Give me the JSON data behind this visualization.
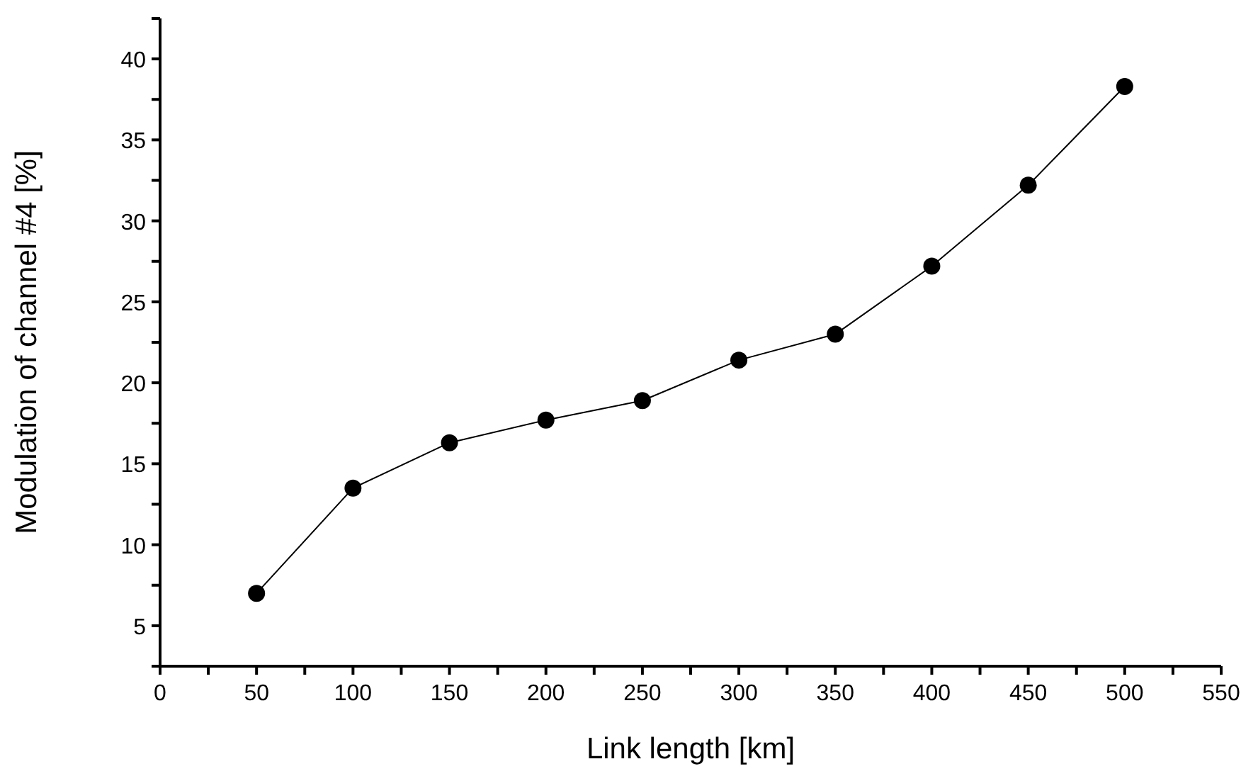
{
  "chart_data": {
    "type": "line",
    "xlabel": "Link length [km]",
    "ylabel": "Modulation of channel #4 [%]",
    "x": [
      50,
      100,
      150,
      200,
      250,
      300,
      350,
      400,
      450,
      500
    ],
    "series": [
      {
        "color": "#000000",
        "values": [
          7.0,
          13.5,
          16.3,
          17.7,
          18.9,
          21.4,
          23.0,
          27.2,
          32.2,
          38.3
        ]
      }
    ],
    "xlim": [
      0,
      550
    ],
    "xticks": [
      0,
      {
        "value": 25,
        "label": null
      },
      50,
      {
        "value": 75,
        "label": null
      },
      100,
      {
        "value": 125,
        "label": null
      },
      150,
      {
        "value": 175,
        "label": null
      },
      200,
      {
        "value": 225,
        "label": null
      },
      250,
      {
        "value": 275,
        "label": null
      },
      300,
      {
        "value": 325,
        "label": null
      },
      350,
      {
        "value": 375,
        "label": null
      },
      400,
      {
        "value": 425,
        "label": null
      },
      450,
      {
        "value": 475,
        "label": null
      },
      500,
      {
        "value": 525,
        "label": null
      },
      550
    ],
    "ylim": [
      2.5,
      42.5
    ],
    "yticks": [
      {
        "value": 2.5,
        "label": null
      },
      5,
      {
        "value": 7.5,
        "label": null
      },
      10,
      {
        "value": 12.5,
        "label": null
      },
      15,
      {
        "value": 17.5,
        "label": null
      },
      20,
      {
        "value": 22.5,
        "label": null
      },
      25,
      {
        "value": 27.5,
        "label": null
      },
      30,
      {
        "value": 32.5,
        "label": null
      },
      35,
      {
        "value": 37.5,
        "label": null
      },
      40,
      {
        "value": 42.5,
        "label": null
      }
    ],
    "marker": "circle",
    "line_style": "solid",
    "grid": false,
    "legend": false
  }
}
